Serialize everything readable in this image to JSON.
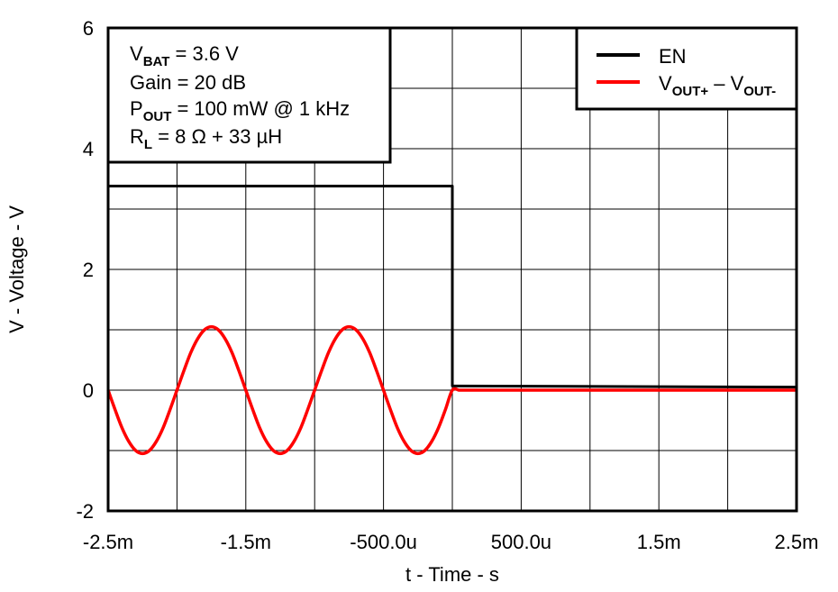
{
  "chart_data": {
    "type": "line",
    "xlabel": "t - Time - s",
    "ylabel": "V - Voltage - V",
    "xlim": [
      -0.0025,
      0.0025
    ],
    "ylim": [
      -2,
      6
    ],
    "grid": true,
    "legend_position": "top-right",
    "x_ticks": [
      -0.0025,
      -0.0015,
      -0.0005,
      0.0005,
      0.0015,
      0.0025
    ],
    "x_tick_labels": [
      "-2.5m",
      "-1.5m",
      "-500.0u",
      "500.0u",
      "1.5m",
      "2.5m"
    ],
    "y_ticks": [
      6,
      4,
      2,
      0,
      -2
    ],
    "y_tick_labels": [
      "6",
      "4",
      "2",
      "0",
      "-2"
    ],
    "annotations": {
      "line1": {
        "main": "V",
        "sub": "BAT",
        "rest": " = 3.6 V"
      },
      "line2": "Gain = 20 dB",
      "line3": {
        "main": "P",
        "sub": "OUT",
        "rest": " = 100 mW @ 1 kHz"
      },
      "line4": {
        "main": "R",
        "sub": "L",
        "rest": " = 8 Ω + 33 µH"
      }
    },
    "legend": [
      {
        "key": "en",
        "label": "EN",
        "color": "#000000"
      },
      {
        "key": "vout",
        "label_parts": [
          "V",
          "OUT+",
          " – V",
          "OUT-"
        ],
        "color": "#ff0000"
      }
    ],
    "series": [
      {
        "key": "en",
        "name": "EN",
        "color": "#000000",
        "x": [
          -0.0025,
          0.0,
          0.0,
          0.0025
        ],
        "y": [
          3.38,
          3.38,
          0.07,
          0.05
        ]
      },
      {
        "key": "vout",
        "color": "#ff0000",
        "x": [
          -0.0025,
          -0.00245,
          -0.0024,
          -0.00235,
          -0.0023,
          -0.00225,
          -0.0022,
          -0.00215,
          -0.0021,
          -0.00205,
          -0.002,
          -0.00195,
          -0.0019,
          -0.00185,
          -0.0018,
          -0.00175,
          -0.0017,
          -0.00165,
          -0.0016,
          -0.00155,
          -0.0015,
          -0.00145,
          -0.0014,
          -0.00135,
          -0.0013,
          -0.00125,
          -0.0012,
          -0.00115,
          -0.0011,
          -0.00105,
          -0.001,
          -0.00095,
          -0.0009,
          -0.00085,
          -0.0008,
          -0.00075,
          -0.0007,
          -0.00065,
          -0.0006,
          -0.00055,
          -0.0005,
          -0.00045,
          -0.0004,
          -0.00035,
          -0.0003,
          -0.00025,
          -0.0002,
          -0.00015,
          -0.0001,
          -5e-05,
          0.0,
          5e-05,
          0.0001,
          0.0025
        ],
        "y": [
          0.0,
          -0.32,
          -0.62,
          -0.85,
          -1.0,
          -1.05,
          -1.0,
          -0.85,
          -0.62,
          -0.32,
          0.0,
          0.32,
          0.62,
          0.85,
          1.0,
          1.05,
          1.0,
          0.85,
          0.62,
          0.32,
          0.0,
          -0.32,
          -0.62,
          -0.85,
          -1.0,
          -1.05,
          -1.0,
          -0.85,
          -0.62,
          -0.32,
          0.0,
          0.32,
          0.62,
          0.85,
          1.0,
          1.05,
          1.0,
          0.85,
          0.62,
          0.32,
          0.0,
          -0.32,
          -0.62,
          -0.85,
          -1.0,
          -1.05,
          -1.0,
          -0.85,
          -0.62,
          -0.32,
          0.0,
          0.0,
          0.0,
          0.0
        ]
      }
    ]
  }
}
